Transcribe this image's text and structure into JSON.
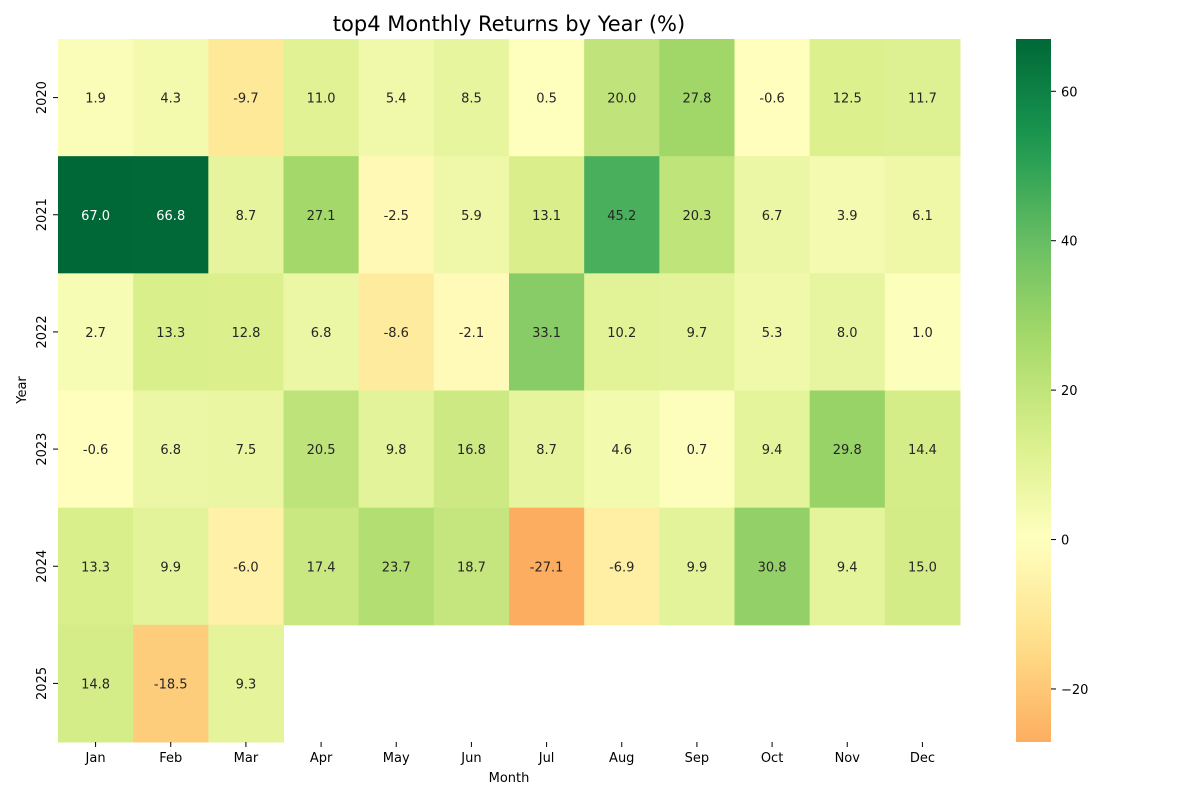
{
  "chart_data": {
    "type": "heatmap",
    "title": "top4 Monthly Returns by Year (%)",
    "xlabel": "Month",
    "ylabel": "Year",
    "x_categories": [
      "Jan",
      "Feb",
      "Mar",
      "Apr",
      "May",
      "Jun",
      "Jul",
      "Aug",
      "Sep",
      "Oct",
      "Nov",
      "Dec"
    ],
    "y_categories": [
      "2020",
      "2021",
      "2022",
      "2023",
      "2024",
      "2025"
    ],
    "values": [
      [
        1.9,
        4.3,
        -9.7,
        11.0,
        5.4,
        8.5,
        0.5,
        20.0,
        27.8,
        -0.6,
        12.5,
        11.7
      ],
      [
        67.0,
        66.8,
        8.7,
        27.1,
        -2.5,
        5.9,
        13.1,
        45.2,
        20.3,
        6.7,
        3.9,
        6.1
      ],
      [
        2.7,
        13.3,
        12.8,
        6.8,
        -8.6,
        -2.1,
        33.1,
        10.2,
        9.7,
        5.3,
        8.0,
        1.0
      ],
      [
        -0.6,
        6.8,
        7.5,
        20.5,
        9.8,
        16.8,
        8.7,
        4.6,
        0.7,
        9.4,
        29.8,
        14.4
      ],
      [
        13.3,
        9.9,
        -6.0,
        17.4,
        23.7,
        18.7,
        -27.1,
        -6.9,
        9.9,
        30.8,
        9.4,
        15.0
      ],
      [
        14.8,
        -18.5,
        9.3,
        null,
        null,
        null,
        null,
        null,
        null,
        null,
        null,
        null
      ]
    ],
    "colormap": "RdYlGn",
    "center": 0,
    "vmin": -27.1,
    "vmax": 67.0,
    "colorbar": {
      "ticks": [
        -20,
        0,
        20,
        40,
        60
      ],
      "tick_labels": [
        "−20",
        "0",
        "20",
        "40",
        "60"
      ]
    }
  }
}
